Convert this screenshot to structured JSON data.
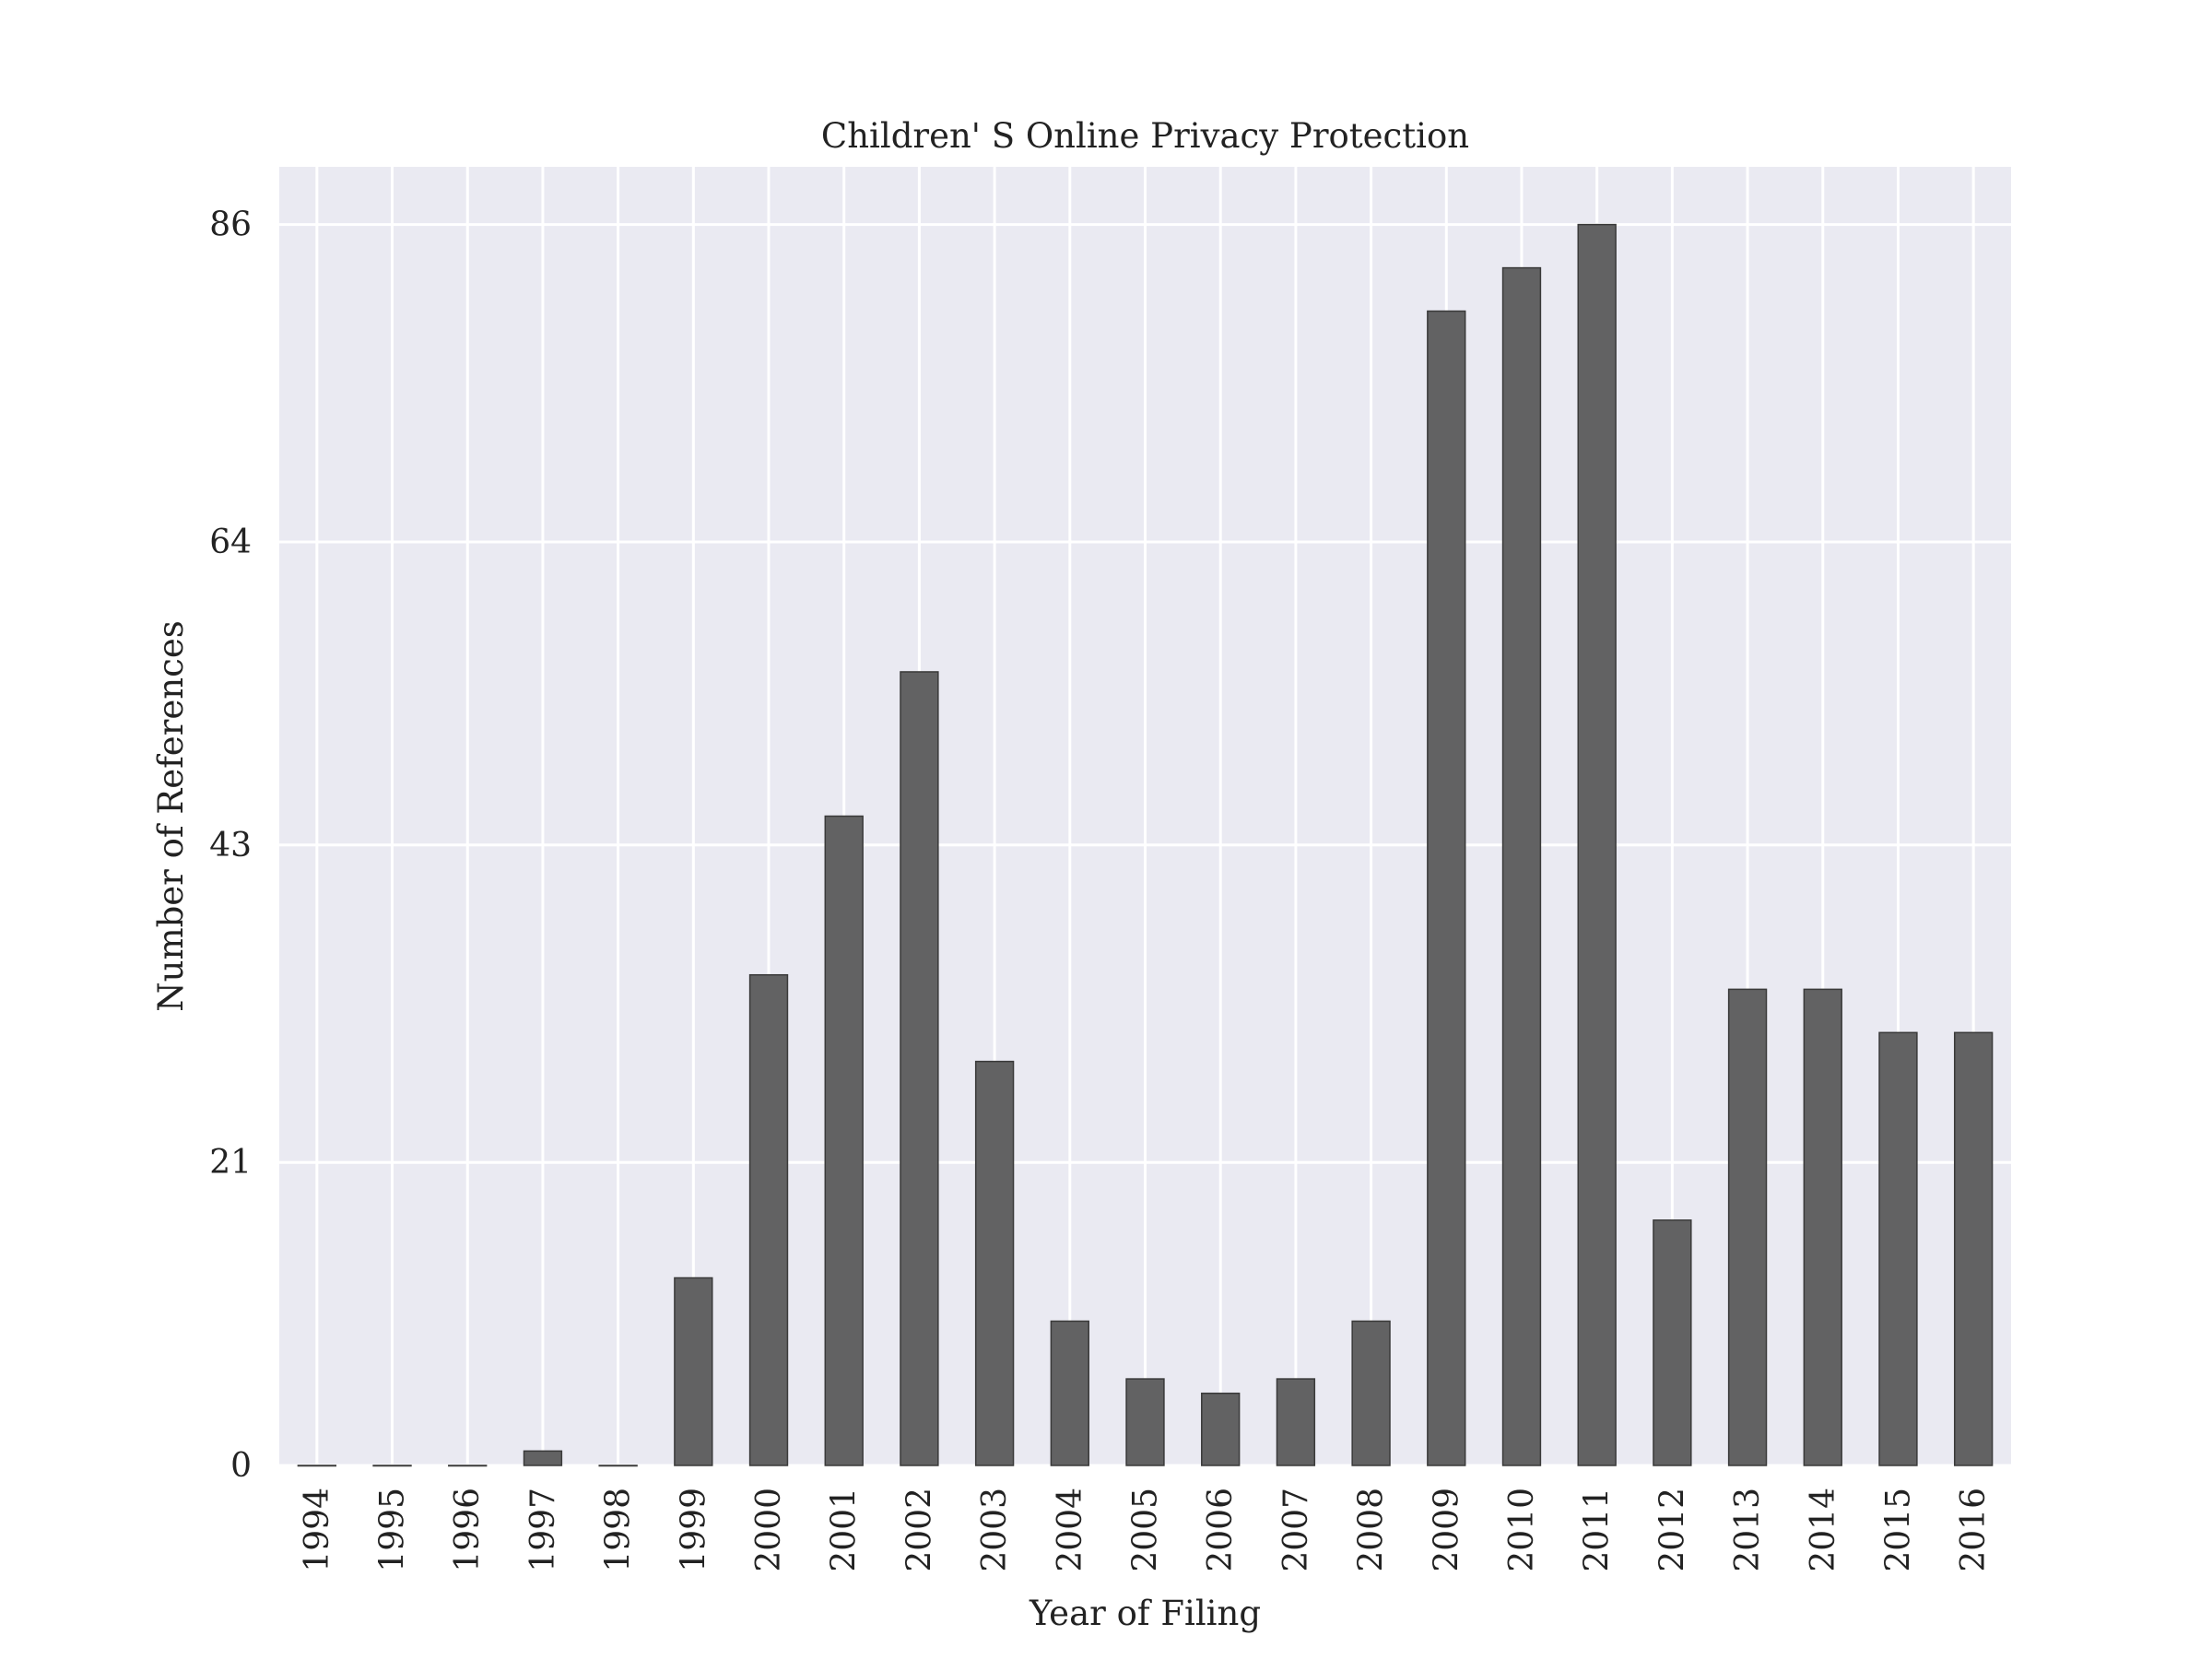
{
  "chart_data": {
    "type": "bar",
    "title": "Children' S Online Privacy Protection",
    "xlabel": "Year of Filing",
    "ylabel": "Number of References",
    "categories": [
      "1994",
      "1995",
      "1996",
      "1997",
      "1998",
      "1999",
      "2000",
      "2001",
      "2002",
      "2003",
      "2004",
      "2005",
      "2006",
      "2007",
      "2008",
      "2009",
      "2010",
      "2011",
      "2012",
      "2013",
      "2014",
      "2015",
      "2016"
    ],
    "values": [
      0,
      0,
      0,
      1,
      0,
      13,
      34,
      45,
      55,
      28,
      10,
      6,
      5,
      6,
      10,
      80,
      83,
      86,
      17,
      33,
      33,
      30,
      30
    ],
    "yticks": [
      "0",
      "21",
      "43",
      "64",
      "86"
    ],
    "ylim": [
      0,
      90
    ],
    "grid": true,
    "colors": {
      "bar": "#626263",
      "plot_background": "#eaeaf2",
      "grid": "#ffffff"
    }
  }
}
